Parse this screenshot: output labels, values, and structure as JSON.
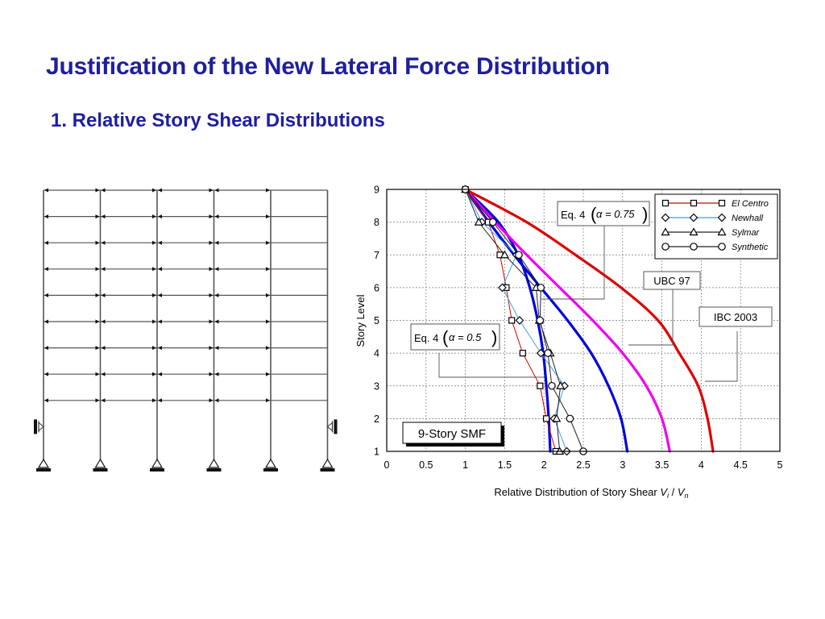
{
  "slide": {
    "title": "Justification of the New Lateral Force Distribution",
    "subtitle": "1. Relative Story Shear Distributions"
  },
  "frame": {
    "description_label": "",
    "stories": 9,
    "bays": 5
  },
  "chart_data": {
    "type": "line",
    "title": "",
    "xlabel_main": "Relative Distribution of Story Shear ",
    "xlabel_var1": "V",
    "xlabel_sub1": "i",
    "xlabel_sep": " / ",
    "xlabel_var2": "V",
    "xlabel_sub2": "n",
    "ylabel": "Story Level",
    "xlim": [
      0,
      5
    ],
    "ylim": [
      1,
      9
    ],
    "xticks": [
      "0",
      "0.5",
      "1",
      "1.5",
      "2",
      "2.5",
      "3",
      "3.5",
      "4",
      "4.5",
      "5"
    ],
    "yticks": [
      "1",
      "2",
      "3",
      "4",
      "5",
      "6",
      "7",
      "8",
      "9"
    ],
    "grid": true,
    "legend_position": "top-right",
    "marker_series": [
      {
        "name": "El Centro",
        "color": "#d40000",
        "marker": "square",
        "x": [
          2.15,
          2.03,
          1.95,
          1.73,
          1.59,
          1.52,
          1.44,
          1.29,
          1.0
        ],
        "y": [
          1,
          2,
          3,
          4,
          5,
          6,
          7,
          8,
          9
        ]
      },
      {
        "name": "Newhall",
        "color": "#3aa0e0",
        "marker": "diamond",
        "x": [
          2.29,
          2.13,
          2.26,
          1.96,
          1.69,
          1.47,
          1.65,
          1.21,
          1.0
        ],
        "y": [
          1,
          2,
          3,
          4,
          5,
          6,
          7,
          8,
          9
        ]
      },
      {
        "name": "Sylmar",
        "color": "#222222",
        "marker": "triangle",
        "x": [
          2.2,
          2.16,
          2.21,
          2.08,
          1.94,
          1.9,
          1.5,
          1.17,
          1.0
        ],
        "y": [
          1,
          2,
          3,
          4,
          5,
          6,
          7,
          8,
          9
        ]
      },
      {
        "name": "Synthetic",
        "color": "#222222",
        "marker": "circle",
        "x": [
          2.5,
          2.33,
          2.1,
          2.05,
          1.95,
          1.96,
          1.68,
          1.35,
          1.0
        ],
        "y": [
          1,
          2,
          3,
          4,
          5,
          6,
          7,
          8,
          9
        ]
      }
    ],
    "curve_series": [
      {
        "name": "Eq. 4 (α = 0.5)",
        "color": "#0000dd",
        "x": [
          2.08,
          2.06,
          2.03,
          1.99,
          1.92,
          1.82,
          1.67,
          1.42,
          1.0
        ],
        "y": [
          1,
          2,
          3,
          4,
          5,
          6,
          7,
          8,
          9
        ]
      },
      {
        "name": "UBC 97",
        "color": "#0000dd",
        "x": [
          3.06,
          2.98,
          2.82,
          2.6,
          2.3,
          1.96,
          1.62,
          1.3,
          1.0
        ],
        "y": [
          1,
          2,
          3,
          4,
          5,
          6,
          7,
          8,
          9
        ]
      },
      {
        "name": "Eq. 4 (α = 0.75)",
        "color": "#ee00ee",
        "x": [
          3.6,
          3.5,
          3.3,
          3.0,
          2.62,
          2.2,
          1.78,
          1.38,
          1.0
        ],
        "y": [
          1,
          2,
          3,
          4,
          5,
          6,
          7,
          8,
          9
        ]
      },
      {
        "name": "IBC 2003",
        "color": "#dd0000",
        "x": [
          4.15,
          4.08,
          3.96,
          3.72,
          3.45,
          2.98,
          2.4,
          1.78,
          1.0
        ],
        "y": [
          1,
          2,
          3,
          4,
          5,
          6,
          7,
          8,
          9
        ]
      }
    ],
    "annotations": {
      "eq_alpha_075": {
        "prefix": "Eq. 4",
        "expr": "α = 0.75"
      },
      "eq_alpha_05": {
        "prefix": "Eq. 4",
        "expr": "α = 0.5"
      },
      "ubc": "UBC 97",
      "ibc": "IBC 2003",
      "smf": "9-Story SMF"
    }
  }
}
